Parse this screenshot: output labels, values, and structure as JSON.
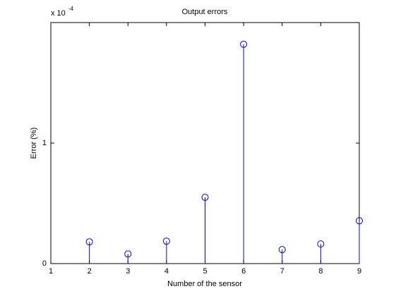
{
  "chart_data": {
    "type": "stem",
    "title": "Output errors",
    "x_label": "Number of the sensor",
    "y_label": "Error (%)",
    "y_exponent": {
      "base": "x 10",
      "power": "-4"
    },
    "x": [
      2,
      3,
      4,
      5,
      6,
      7,
      8,
      9
    ],
    "values": [
      0.18,
      0.08,
      0.186,
      0.55,
      1.82,
      0.116,
      0.163,
      0.355
    ],
    "color": "#0000ff",
    "xlim": [
      1,
      9
    ],
    "xticks": [
      1,
      2,
      3,
      4,
      5,
      6,
      7,
      8,
      9
    ],
    "ylim": [
      0,
      2
    ],
    "yticks": [
      0,
      1
    ],
    "grid": false
  }
}
